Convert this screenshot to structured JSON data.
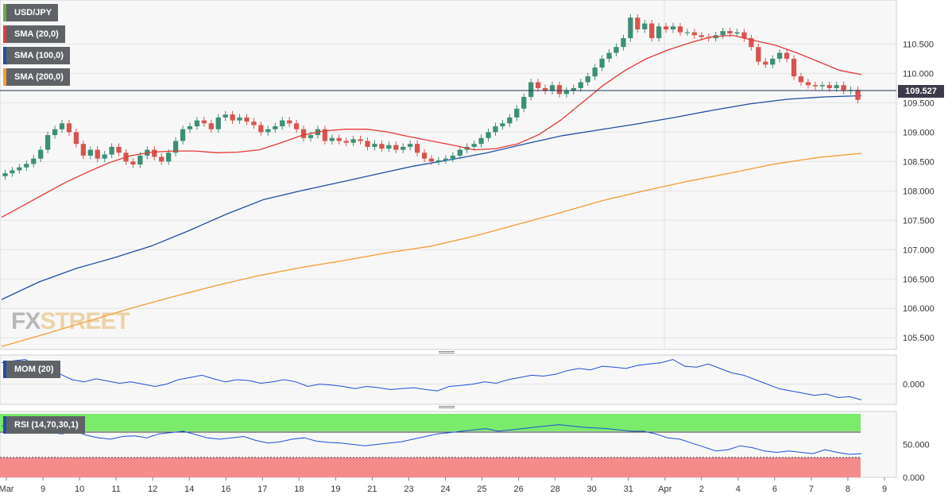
{
  "chart_data": {
    "type": "candlestick",
    "symbol": "USD/JPY",
    "last_price": "109.527",
    "legend": [
      {
        "label": "USD/JPY",
        "color": "#6aa84f"
      },
      {
        "label": "SMA (20,0)",
        "color": "#e53935"
      },
      {
        "label": "SMA (100,0)",
        "color": "#1e4fa1"
      },
      {
        "label": "SMA (200,0)",
        "color": "#f39c33"
      }
    ],
    "price_axis": {
      "ylim": [
        105.3,
        111.25
      ],
      "ticks": [
        "105.500",
        "106.000",
        "106.500",
        "107.000",
        "107.500",
        "108.000",
        "108.500",
        "109.000",
        "109.500",
        "110.000",
        "110.500"
      ],
      "tick_values": [
        105.5,
        106.0,
        106.5,
        107.0,
        107.5,
        108.0,
        108.5,
        109.0,
        109.5,
        110.0,
        110.5
      ]
    },
    "x_axis": {
      "labels": [
        "Mar",
        "9",
        "10",
        "11",
        "12",
        "14",
        "16",
        "17",
        "18",
        "19",
        "21",
        "23",
        "24",
        "25",
        "26",
        "28",
        "30",
        "31",
        "Apr",
        "2",
        "4",
        "6",
        "7",
        "8",
        "9"
      ]
    },
    "closes": [
      108.3,
      108.35,
      108.4,
      108.46,
      108.55,
      108.7,
      108.95,
      109.05,
      109.15,
      109.0,
      108.8,
      108.6,
      108.7,
      108.55,
      108.62,
      108.75,
      108.65,
      108.5,
      108.45,
      108.6,
      108.7,
      108.58,
      108.5,
      108.65,
      108.85,
      109.05,
      109.1,
      109.2,
      109.15,
      109.05,
      109.25,
      109.3,
      109.2,
      109.25,
      109.18,
      109.12,
      109.0,
      109.05,
      109.1,
      109.2,
      109.15,
      109.05,
      108.9,
      108.95,
      109.05,
      108.85,
      108.9,
      108.85,
      108.82,
      108.88,
      108.85,
      108.75,
      108.8,
      108.72,
      108.78,
      108.7,
      108.75,
      108.8,
      108.65,
      108.55,
      108.5,
      108.52,
      108.55,
      108.6,
      108.7,
      108.75,
      108.8,
      108.9,
      109.0,
      109.1,
      109.15,
      109.25,
      109.4,
      109.6,
      109.85,
      109.75,
      109.7,
      109.8,
      109.65,
      109.7,
      109.75,
      109.85,
      109.95,
      110.1,
      110.25,
      110.35,
      110.45,
      110.6,
      110.95,
      110.75,
      110.85,
      110.6,
      110.8,
      110.75,
      110.8,
      110.7,
      110.7,
      110.65,
      110.62,
      110.6,
      110.65,
      110.72,
      110.68,
      110.7,
      110.6,
      110.45,
      110.2,
      110.15,
      110.25,
      110.35,
      110.25,
      109.95,
      109.85,
      109.8,
      109.78,
      109.8,
      109.75,
      109.8,
      109.7,
      109.72,
      109.55
    ],
    "sma20": [
      107.55,
      107.75,
      107.95,
      108.15,
      108.32,
      108.48,
      108.6,
      108.66,
      108.68,
      108.68,
      108.65,
      108.66,
      108.7,
      108.82,
      108.95,
      109.02,
      109.05,
      109.05,
      109.0,
      108.92,
      108.85,
      108.78,
      108.7,
      108.72,
      108.8,
      108.96,
      109.2,
      109.5,
      109.8,
      110.05,
      110.25,
      110.4,
      110.52,
      110.62,
      110.65,
      110.56,
      110.48,
      110.35,
      110.2,
      110.05,
      109.98
    ],
    "sma100": [
      106.15,
      106.45,
      106.68,
      106.86,
      107.06,
      107.32,
      107.6,
      107.85,
      108.0,
      108.14,
      108.28,
      108.42,
      108.53,
      108.65,
      108.8,
      108.94,
      109.04,
      109.14,
      109.25,
      109.37,
      109.48,
      109.56,
      109.6,
      109.62
    ],
    "sma200": [
      105.35,
      105.56,
      105.78,
      106.0,
      106.2,
      106.39,
      106.56,
      106.7,
      106.82,
      106.95,
      107.06,
      107.23,
      107.43,
      107.63,
      107.84,
      108.01,
      108.17,
      108.31,
      108.46,
      108.57,
      108.64
    ],
    "momentum": {
      "label": "MOM (20)",
      "ticks": [
        "0.000"
      ],
      "values": [
        0.48,
        0.52,
        0.55,
        0.42,
        0.3,
        0.22,
        0.1,
        0.05,
        0.12,
        0.07,
        0.02,
        0.05,
        0.0,
        -0.05,
        0.0,
        0.1,
        0.15,
        0.2,
        0.12,
        0.05,
        0.1,
        0.08,
        0.02,
        0.05,
        0.1,
        0.05,
        -0.05,
        0.0,
        -0.02,
        -0.05,
        -0.1,
        -0.05,
        -0.08,
        -0.12,
        -0.1,
        -0.08,
        -0.12,
        -0.15,
        -0.05,
        -0.03,
        0.0,
        0.05,
        0.02,
        0.1,
        0.15,
        0.2,
        0.18,
        0.22,
        0.3,
        0.35,
        0.32,
        0.4,
        0.38,
        0.35,
        0.42,
        0.45,
        0.48,
        0.55,
        0.4,
        0.38,
        0.45,
        0.35,
        0.25,
        0.2,
        0.1,
        0.0,
        -0.1,
        -0.15,
        -0.2,
        -0.25,
        -0.22,
        -0.3,
        -0.28,
        -0.35
      ],
      "ylim": [
        -0.45,
        0.65
      ]
    },
    "rsi": {
      "label": "RSI (14,70,30,1)",
      "ticks": [
        "50.000",
        "0.000"
      ],
      "tick_values": [
        50,
        0
      ],
      "upper": 70,
      "lower": 30,
      "upper_zone_color": "#7aeb6a",
      "lower_zone_color": "#f58a8a",
      "values": [
        78,
        80,
        82,
        74,
        68,
        66,
        70,
        64,
        60,
        58,
        62,
        63,
        60,
        66,
        68,
        70,
        65,
        60,
        58,
        60,
        62,
        56,
        52,
        54,
        58,
        60,
        55,
        53,
        52,
        50,
        48,
        50,
        52,
        54,
        58,
        62,
        66,
        68,
        70,
        72,
        74,
        70,
        72,
        74,
        76,
        78,
        80,
        78,
        76,
        75,
        74,
        72,
        70,
        70,
        66,
        60,
        58,
        52,
        46,
        40,
        42,
        48,
        45,
        40,
        38,
        40,
        38,
        36,
        42,
        38,
        35,
        36
      ],
      "ylim": [
        0,
        100
      ]
    }
  }
}
